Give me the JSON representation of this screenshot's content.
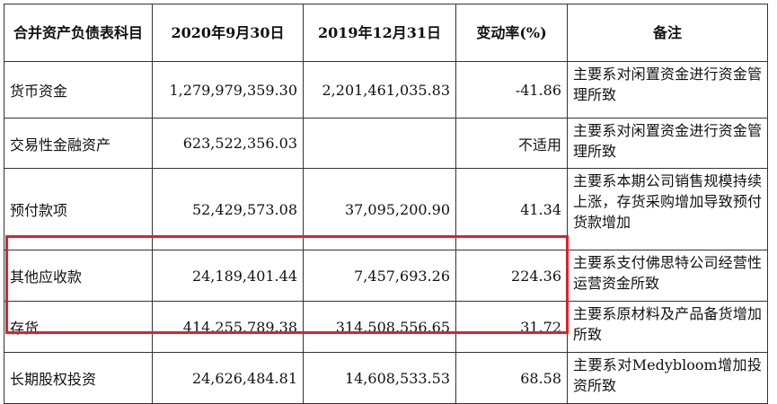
{
  "headers": [
    "合并资产负债表科目",
    "2020年9月30日",
    "2019年12月31日",
    "变动率(%)",
    "备注"
  ],
  "rows": [
    {
      "item": "货币资金",
      "v2020": "1,279,979,359.30",
      "v2019": "2,201,461,035.83",
      "rate": "-41.86",
      "note": "主要系对闲置资金进行资金管理所致"
    },
    {
      "item": "交易性金融资产",
      "v2020": "623,522,356.03",
      "v2019": "",
      "rate": "不适用",
      "note": "主要系对闲置资金进行资金管理所致"
    },
    {
      "item": "预付款项",
      "v2020": "52,429,573.08",
      "v2019": "37,095,200.90",
      "rate": "41.34",
      "note": "主要系本期公司销售规模持续上涨，存货采购增加导致预付货款增加"
    },
    {
      "item": "其他应收款",
      "v2020": "24,189,401.44",
      "v2019": "7,457,693.26",
      "rate": "224.36",
      "note": "主要系支付佛思特公司经营性运营资金所致"
    },
    {
      "item": "存货",
      "v2020": "414,255,789.38",
      "v2019": "314,508,556.65",
      "rate": "31.72",
      "note": "主要系原材料及产品备货增加所致"
    },
    {
      "item": "长期股权投资",
      "v2020": "24,626,484.81",
      "v2019": "14,608,533.53",
      "rate": "68.58",
      "note": "主要系对Medybloom增加投资所致"
    }
  ],
  "watermark": "",
  "colors": {
    "highlight_border": "#e0202a"
  }
}
